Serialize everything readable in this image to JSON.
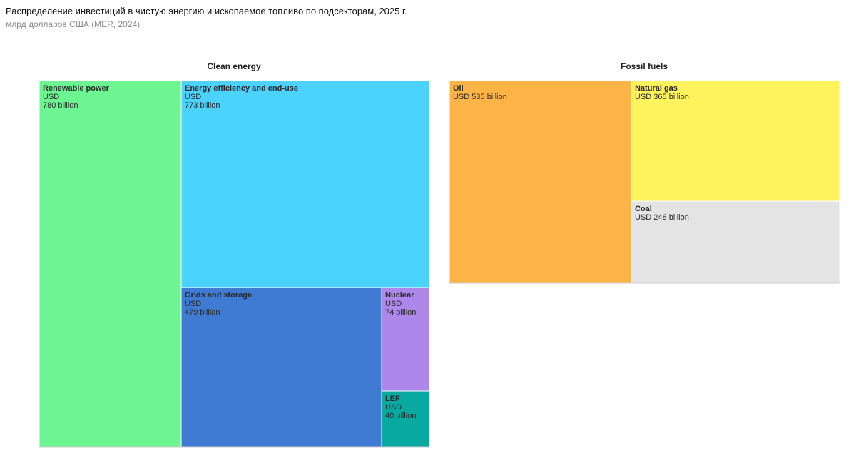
{
  "title": "Распределение инвестиций в чистую энергию и ископаемое топливо по подсекторам, 2025 г.",
  "subtitle": "млрд долларов США (MER, 2024)",
  "chart_data": {
    "type": "treemap",
    "groups": [
      {
        "name": "Clean energy",
        "items": [
          {
            "name": "Renewable power",
            "currency": "USD",
            "amount": "780 billion",
            "value": 780,
            "color": "#6cf591"
          },
          {
            "name": "Energy efficiency and end-use",
            "currency": "USD",
            "amount": "773 billion",
            "value": 773,
            "color": "#4bd3fd"
          },
          {
            "name": "Grids and storage",
            "currency": "USD",
            "amount": "479 billion",
            "value": 479,
            "color": "#3f7bd3"
          },
          {
            "name": "Nuclear",
            "currency": "USD",
            "amount": "74 billion",
            "value": 74,
            "color": "#ae87eb"
          },
          {
            "name": "LEF",
            "currency": "USD",
            "amount": "40 billion",
            "value": 40,
            "color": "#08a9a0"
          }
        ]
      },
      {
        "name": "Fossil fuels",
        "items": [
          {
            "name": "Oil",
            "currency": "USD",
            "amount": "535 billion",
            "value": 535,
            "color": "#fdb447"
          },
          {
            "name": "Natural gas",
            "currency": "USD",
            "amount": "365 billion",
            "value": 365,
            "color": "#fef35c"
          },
          {
            "name": "Coal",
            "currency": "USD",
            "amount": "248 billion",
            "value": 248,
            "color": "#e4e4e4"
          }
        ]
      }
    ]
  }
}
